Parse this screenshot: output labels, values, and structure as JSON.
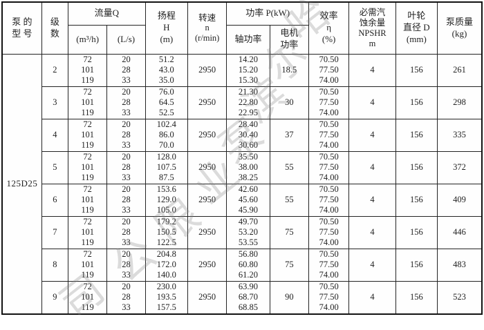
{
  "table": {
    "headers": {
      "model": "泵 的\n型 号",
      "stages": "级\n数",
      "flow_group": "流量Q",
      "flow_m3h": "(m³/h)",
      "flow_ls": "(L/s)",
      "head": "扬程\nH\n(m)",
      "speed": "转速\nn\n(r/min)",
      "power_group": "功率 P(kW)",
      "shaft_power": "轴功率",
      "motor_power": "电机\n功率",
      "efficiency": "效率\nη\n(%)",
      "npshr": "必需汽\n蚀余量\nNPSHR\nm",
      "impeller": "叶轮\n直径 D\n(mm)",
      "mass": "泵质量\n(kg)"
    },
    "model_value": "125D25",
    "rows": [
      {
        "stages": "2",
        "flow_m3h": [
          "72",
          "101",
          "119"
        ],
        "flow_ls": [
          "20",
          "28",
          "33"
        ],
        "head": [
          "51.2",
          "43.0",
          "35.0"
        ],
        "speed": "2950",
        "shaft_power": [
          "14.20",
          "15.20",
          "15.30"
        ],
        "motor_power": "18.5",
        "efficiency": [
          "70.50",
          "77.50",
          "74.00"
        ],
        "npshr": "4",
        "impeller": "156",
        "mass": "261"
      },
      {
        "stages": "3",
        "flow_m3h": [
          "72",
          "101",
          "119"
        ],
        "flow_ls": [
          "20",
          "28",
          "33"
        ],
        "head": [
          "76.0",
          "64.5",
          "52.5"
        ],
        "speed": "2950",
        "shaft_power": [
          "21.30",
          "22.80",
          "22.95"
        ],
        "motor_power": "30",
        "efficiency": [
          "70.50",
          "77.50",
          "74.00"
        ],
        "npshr": "4",
        "impeller": "156",
        "mass": "298"
      },
      {
        "stages": "4",
        "flow_m3h": [
          "72",
          "101",
          "119"
        ],
        "flow_ls": [
          "20",
          "28",
          "33"
        ],
        "head": [
          "102.4",
          "86.0",
          "70.0"
        ],
        "speed": "2950",
        "shaft_power": [
          "28.40",
          "30.40",
          "30.60"
        ],
        "motor_power": "37",
        "efficiency": [
          "70.50",
          "77.50",
          "74.00"
        ],
        "npshr": "4",
        "impeller": "156",
        "mass": "335"
      },
      {
        "stages": "5",
        "flow_m3h": [
          "72",
          "101",
          "119"
        ],
        "flow_ls": [
          "20",
          "28",
          "33"
        ],
        "head": [
          "128.0",
          "107.5",
          "87.5"
        ],
        "speed": "2950",
        "shaft_power": [
          "35.50",
          "38.00",
          "38.25"
        ],
        "motor_power": "55",
        "efficiency": [
          "70.50",
          "77.50",
          "74.00"
        ],
        "npshr": "4",
        "impeller": "156",
        "mass": "372"
      },
      {
        "stages": "6",
        "flow_m3h": [
          "72",
          "101",
          "119"
        ],
        "flow_ls": [
          "20",
          "28",
          "33"
        ],
        "head": [
          "153.6",
          "129.0",
          "105.0"
        ],
        "speed": "2950",
        "shaft_power": [
          "42.60",
          "45.60",
          "45.90"
        ],
        "motor_power": "55",
        "efficiency": [
          "70.50",
          "77.50",
          "74.00"
        ],
        "npshr": "4",
        "impeller": "156",
        "mass": "409"
      },
      {
        "stages": "7",
        "flow_m3h": [
          "72",
          "101",
          "119"
        ],
        "flow_ls": [
          "20",
          "28",
          "33"
        ],
        "head": [
          "179.2",
          "150.5",
          "122.5"
        ],
        "speed": "2950",
        "shaft_power": [
          "49.70",
          "53.20",
          "53.55"
        ],
        "motor_power": "75",
        "efficiency": [
          "70.50",
          "77.50",
          "74.00"
        ],
        "npshr": "4",
        "impeller": "156",
        "mass": "446"
      },
      {
        "stages": "8",
        "flow_m3h": [
          "72",
          "101",
          "119"
        ],
        "flow_ls": [
          "20",
          "28",
          "33"
        ],
        "head": [
          "204.8",
          "172.0",
          "140.0"
        ],
        "speed": "2950",
        "shaft_power": [
          "56.80",
          "60.80",
          "61.20"
        ],
        "motor_power": "75",
        "efficiency": [
          "70.50",
          "77.50",
          "74.00"
        ],
        "npshr": "4",
        "impeller": "156",
        "mass": "483"
      },
      {
        "stages": "9",
        "flow_m3h": [
          "72",
          "101",
          "119"
        ],
        "flow_ls": [
          "20",
          "28",
          "33"
        ],
        "head": [
          "230.0",
          "193.5",
          "157.5"
        ],
        "speed": "2950",
        "shaft_power": [
          "63.90",
          "68.70",
          "68.85"
        ],
        "motor_power": "90",
        "efficiency": [
          "70.50",
          "77.50",
          "74.00"
        ],
        "npshr": "4",
        "impeller": "156",
        "mass": "523"
      }
    ]
  },
  "watermark": {
    "chars": [
      "哈",
      "尔",
      "滨",
      "泵",
      "业",
      "限",
      "公",
      "司"
    ],
    "color": "#828282"
  }
}
